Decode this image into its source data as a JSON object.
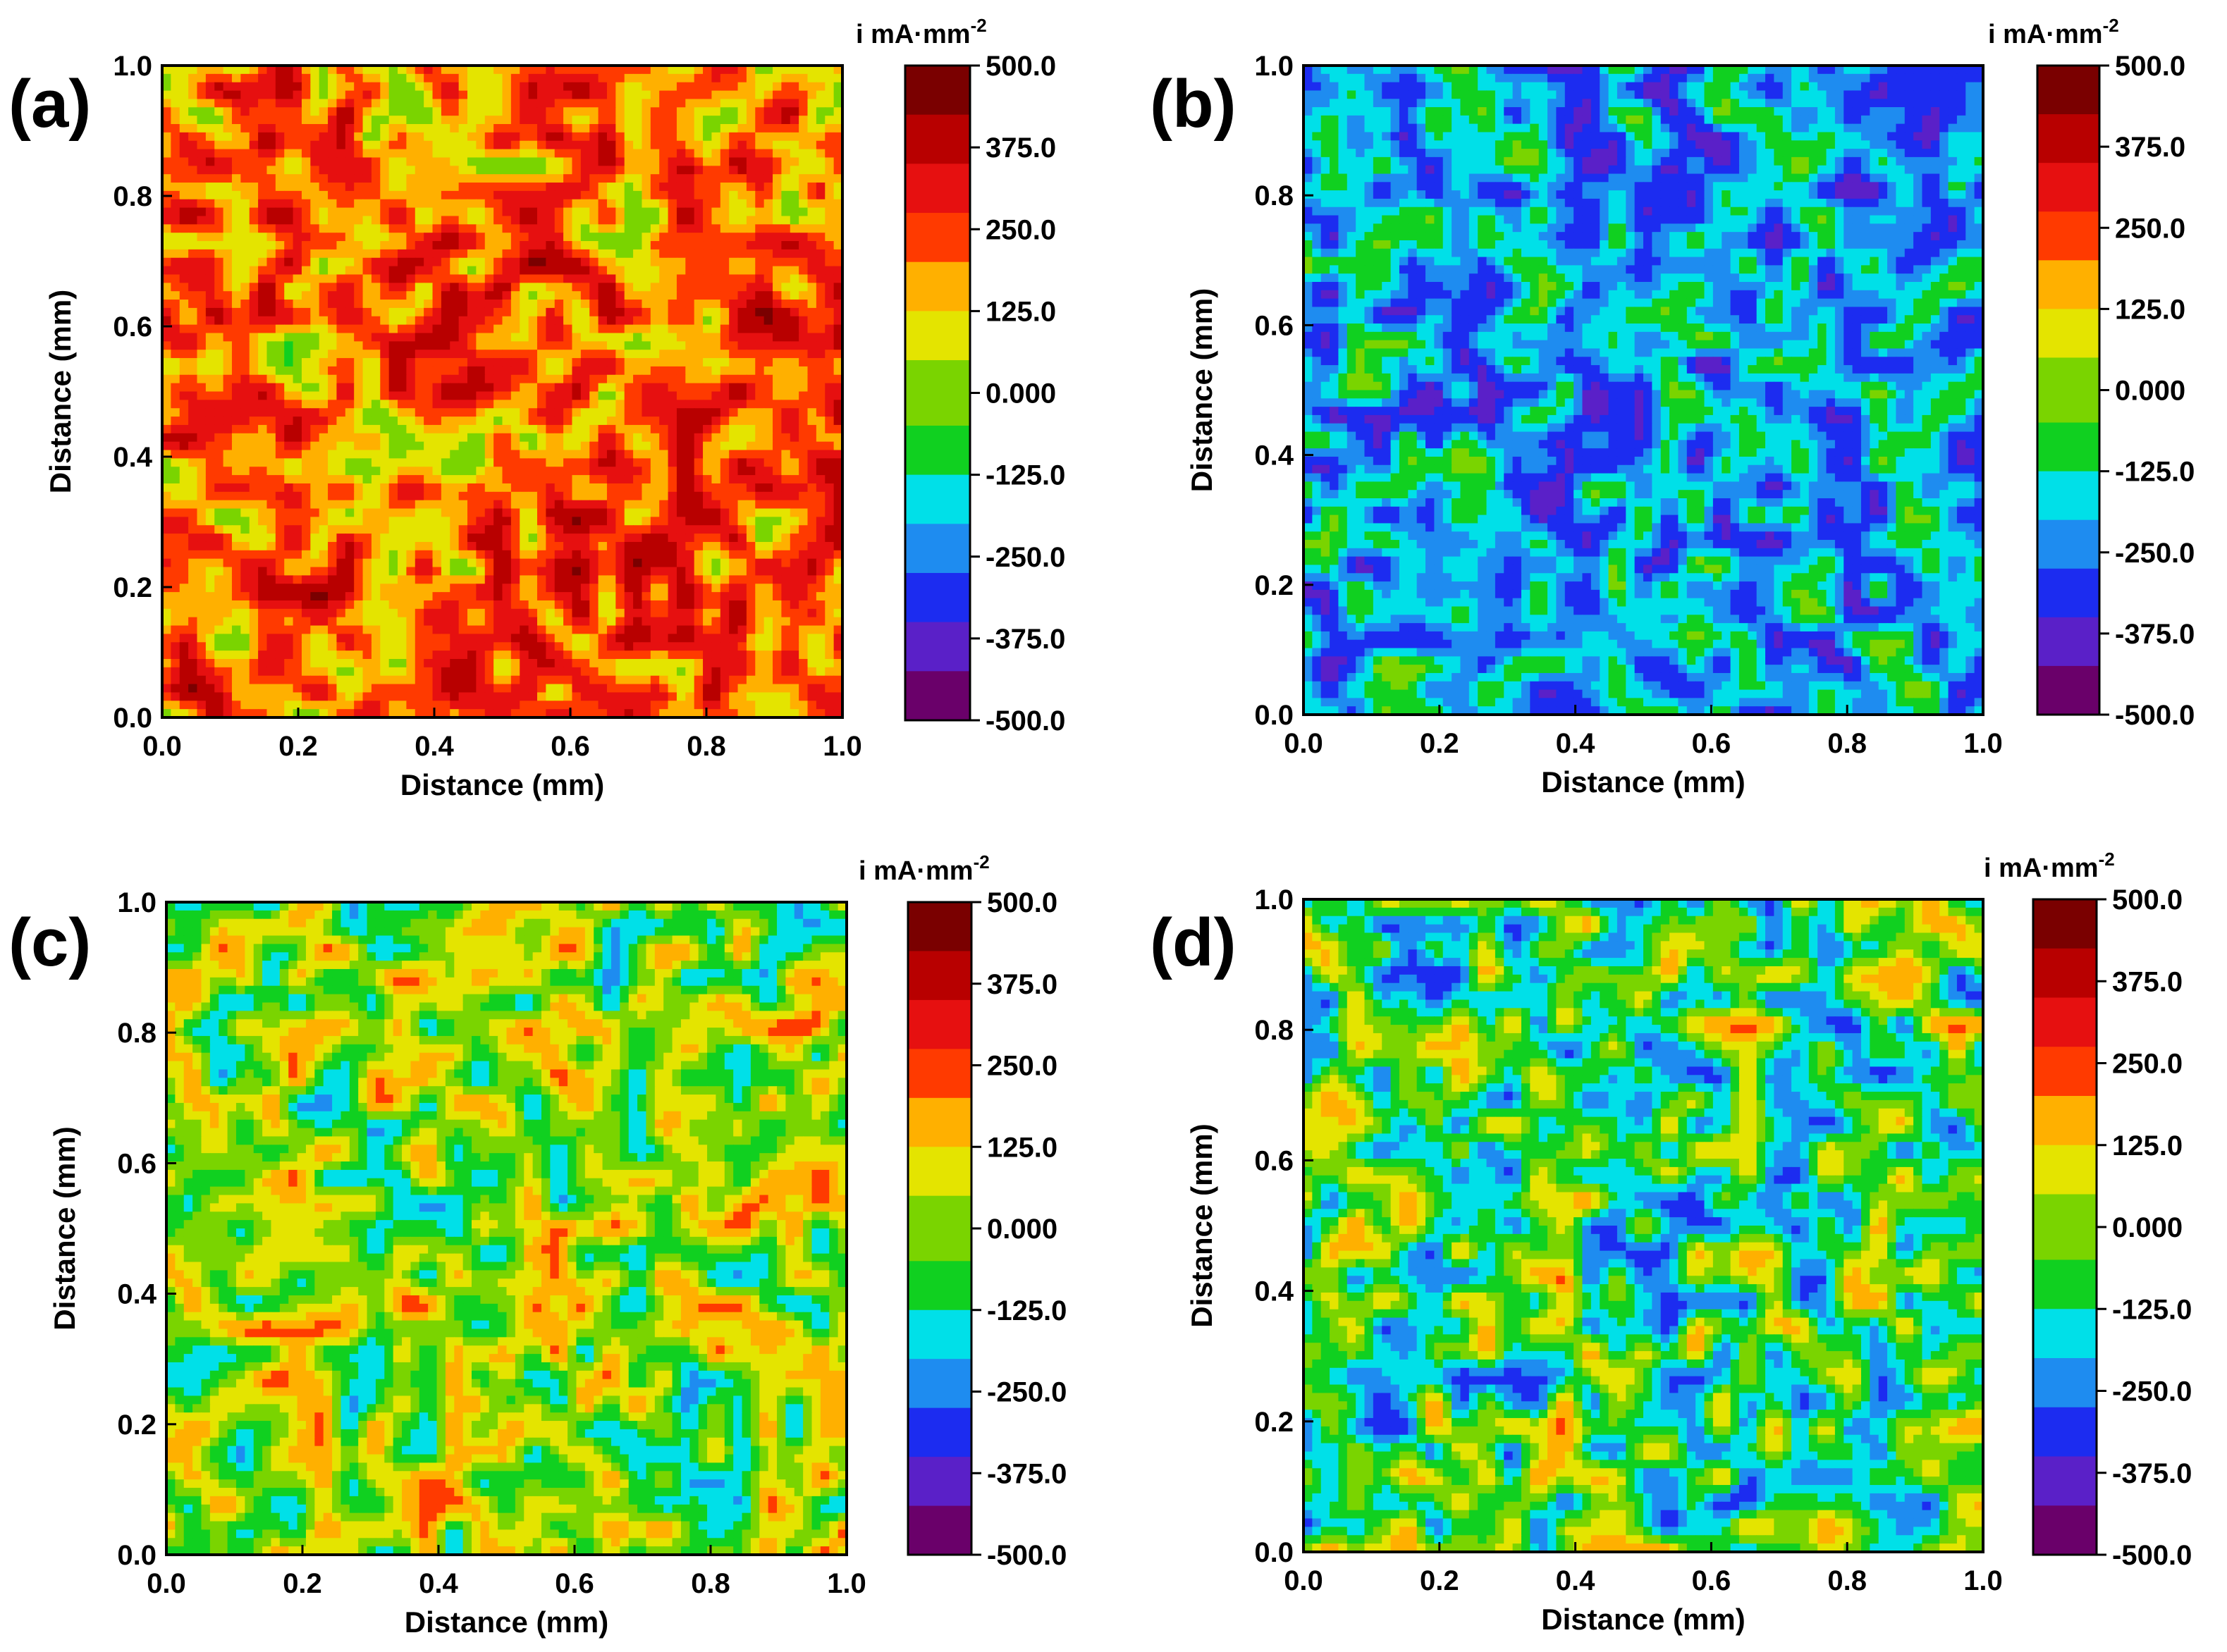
{
  "chart_data": [
    {
      "type": "heatmap",
      "panel_label": "(a)",
      "xlabel": "Distance (mm)",
      "ylabel": "Distance (mm)",
      "xlim": [
        0.0,
        1.0
      ],
      "ylim": [
        0.0,
        1.0
      ],
      "x_ticks": [
        "0.0",
        "0.2",
        "0.4",
        "0.6",
        "0.8",
        "1.0"
      ],
      "y_ticks": [
        "0.0",
        "0.2",
        "0.4",
        "0.6",
        "0.8",
        "1.0"
      ],
      "colorbar_title": "i mA·mm",
      "colorbar_title_sup": "-2",
      "colorbar_range": [
        -500.0,
        500.0
      ],
      "colorbar_ticks": [
        "500.0",
        "375.0",
        "250.0",
        "125.0",
        "0.000",
        "-125.0",
        "-250.0",
        "-375.0",
        "-500.0"
      ],
      "pattern": {
        "mean": 200,
        "amplitude": 260,
        "seed": 11
      },
      "description": "current density map dominated by positive (red) values with green low regions"
    },
    {
      "type": "heatmap",
      "panel_label": "(b)",
      "xlabel": "Distance (mm)",
      "ylabel": "Distance (mm)",
      "xlim": [
        0.0,
        1.0
      ],
      "ylim": [
        0.0,
        1.0
      ],
      "x_ticks": [
        "0.0",
        "0.2",
        "0.4",
        "0.6",
        "0.8",
        "1.0"
      ],
      "y_ticks": [
        "0.0",
        "0.2",
        "0.4",
        "0.6",
        "0.8",
        "1.0"
      ],
      "colorbar_title": "i mA·mm",
      "colorbar_title_sup": "-2",
      "colorbar_range": [
        -500.0,
        500.0
      ],
      "colorbar_ticks": [
        "500.0",
        "375.0",
        "250.0",
        "125.0",
        "0.000",
        "-125.0",
        "-250.0",
        "-375.0",
        "-500.0"
      ],
      "pattern": {
        "mean": -200,
        "amplitude": 230,
        "seed": 27
      },
      "description": "current density map dominated by negative (green/blue) values with yellow highs"
    },
    {
      "type": "heatmap",
      "panel_label": "(c)",
      "xlabel": "Distance (mm)",
      "ylabel": "Distance (mm)",
      "xlim": [
        0.0,
        1.0
      ],
      "ylim": [
        0.0,
        1.0
      ],
      "x_ticks": [
        "0.0",
        "0.2",
        "0.4",
        "0.6",
        "0.8",
        "1.0"
      ],
      "y_ticks": [
        "0.0",
        "0.2",
        "0.4",
        "0.6",
        "0.8",
        "1.0"
      ],
      "colorbar_title": "i mA·mm",
      "colorbar_title_sup": "-2",
      "colorbar_range": [
        -500.0,
        500.0
      ],
      "colorbar_ticks": [
        "500.0",
        "375.0",
        "250.0",
        "125.0",
        "0.000",
        "-125.0",
        "-250.0",
        "-375.0",
        "-500.0"
      ],
      "pattern": {
        "mean": 10,
        "amplitude": 260,
        "seed": 43
      },
      "description": "mixed green and orange/red current density map"
    },
    {
      "type": "heatmap",
      "panel_label": "(d)",
      "xlabel": "Distance (mm)",
      "ylabel": "Distance (mm)",
      "xlim": [
        0.0,
        1.0
      ],
      "ylim": [
        0.0,
        1.0
      ],
      "x_ticks": [
        "0.0",
        "0.2",
        "0.4",
        "0.6",
        "0.8",
        "1.0"
      ],
      "y_ticks": [
        "0.0",
        "0.2",
        "0.4",
        "0.6",
        "0.8",
        "1.0"
      ],
      "colorbar_title": "i mA·mm",
      "colorbar_title_sup": "-2",
      "colorbar_range": [
        -500.0,
        500.0
      ],
      "colorbar_ticks": [
        "500.0",
        "375.0",
        "250.0",
        "125.0",
        "0.000",
        "-125.0",
        "-250.0",
        "-375.0",
        "-500.0"
      ],
      "pattern": {
        "mean": -60,
        "amplitude": 300,
        "seed": 59
      },
      "description": "mixed green/yellow current density map with blue and red spots"
    }
  ],
  "colormap": [
    "#6a006a",
    "#5a20c8",
    "#1c2cf0",
    "#1e8cf0",
    "#00e0e8",
    "#10d020",
    "#7ad400",
    "#e4e400",
    "#ffb000",
    "#ff3a00",
    "#e61010",
    "#b80000",
    "#7a0000"
  ]
}
